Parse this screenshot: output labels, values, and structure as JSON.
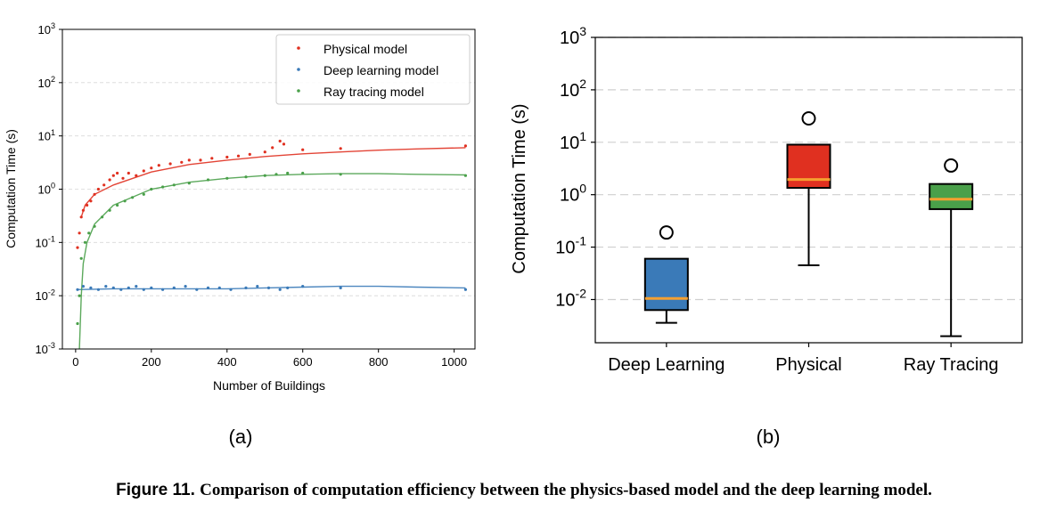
{
  "caption": {
    "label": "Figure 11.",
    "text": "Comparison of computation efficiency between the physics-based model and the deep learning model."
  },
  "chart_data": [
    {
      "type": "scatter",
      "panel_label": "(a)",
      "xlabel": "Number of Buildings",
      "ylabel": "Computation Time (s)",
      "xlim": [
        -35,
        1055
      ],
      "ylim": [
        0.001,
        1000
      ],
      "yscale": "log",
      "x_ticks": [
        0,
        200,
        400,
        600,
        800,
        1000
      ],
      "y_ticks": [
        0.001,
        0.01,
        0.1,
        1,
        10,
        100,
        1000
      ],
      "grid": "horizontal dashed",
      "legend_position": "top-right",
      "series": [
        {
          "name": "Physical model",
          "color": "#e03020",
          "x": [
            5,
            10,
            15,
            20,
            30,
            40,
            50,
            60,
            75,
            90,
            100,
            110,
            125,
            140,
            160,
            180,
            200,
            220,
            250,
            280,
            300,
            330,
            360,
            400,
            430,
            460,
            500,
            520,
            540,
            550,
            600,
            700,
            1030
          ],
          "y": [
            0.08,
            0.15,
            0.3,
            0.4,
            0.5,
            0.6,
            0.8,
            1.0,
            1.2,
            1.5,
            1.8,
            2.0,
            1.6,
            2.0,
            1.8,
            2.2,
            2.5,
            2.8,
            3.0,
            3.2,
            3.5,
            3.5,
            3.8,
            4.0,
            4.2,
            4.5,
            5.0,
            6.0,
            8.0,
            7.0,
            5.5,
            5.8,
            6.5
          ]
        },
        {
          "name": "Deep learning model",
          "color": "#3a7ab8",
          "x": [
            5,
            20,
            40,
            60,
            80,
            100,
            120,
            140,
            160,
            180,
            200,
            230,
            260,
            290,
            320,
            350,
            380,
            410,
            450,
            480,
            510,
            540,
            560,
            600,
            700,
            1030
          ],
          "y": [
            0.013,
            0.015,
            0.014,
            0.013,
            0.015,
            0.014,
            0.013,
            0.014,
            0.015,
            0.013,
            0.014,
            0.013,
            0.014,
            0.015,
            0.013,
            0.014,
            0.014,
            0.013,
            0.014,
            0.015,
            0.014,
            0.013,
            0.014,
            0.015,
            0.014,
            0.013
          ]
        },
        {
          "name": "Ray tracing model",
          "color": "#4aa04a",
          "x": [
            5,
            10,
            15,
            25,
            35,
            50,
            70,
            90,
            110,
            130,
            150,
            180,
            200,
            230,
            260,
            300,
            350,
            400,
            450,
            500,
            530,
            560,
            600,
            700,
            1030
          ],
          "y": [
            0.003,
            0.01,
            0.05,
            0.1,
            0.15,
            0.2,
            0.3,
            0.4,
            0.5,
            0.6,
            0.7,
            0.8,
            1.0,
            1.1,
            1.2,
            1.3,
            1.5,
            1.6,
            1.7,
            1.8,
            1.9,
            2.0,
            2.0,
            1.9,
            1.8
          ]
        }
      ],
      "fits": [
        {
          "series": "Physical model",
          "x": [
            15,
            25,
            50,
            100,
            200,
            300,
            400,
            500,
            600,
            700,
            800,
            900,
            1030
          ],
          "y": [
            0.3,
            0.5,
            0.8,
            1.2,
            2.1,
            2.9,
            3.5,
            4.1,
            4.6,
            5.0,
            5.4,
            5.7,
            6.0
          ]
        },
        {
          "series": "Deep learning model",
          "x": [
            5,
            100,
            200,
            300,
            400,
            500,
            600,
            700,
            800,
            900,
            1030
          ],
          "y": [
            0.013,
            0.0135,
            0.0135,
            0.0135,
            0.0135,
            0.014,
            0.0145,
            0.015,
            0.015,
            0.0145,
            0.014
          ]
        },
        {
          "series": "Ray tracing model",
          "x": [
            10,
            15,
            20,
            30,
            50,
            100,
            200,
            300,
            400,
            500,
            600,
            700,
            800,
            900,
            1030
          ],
          "y": [
            0.001,
            0.01,
            0.04,
            0.1,
            0.22,
            0.5,
            1.0,
            1.35,
            1.6,
            1.8,
            1.9,
            1.95,
            1.95,
            1.9,
            1.85
          ]
        }
      ]
    },
    {
      "type": "box",
      "panel_label": "(b)",
      "ylabel": "Computation Time (s)",
      "yscale": "log",
      "ylim": [
        0.0015,
        1000
      ],
      "y_ticks": [
        0.01,
        0.1,
        1,
        10,
        100,
        1000
      ],
      "grid": "horizontal dashed",
      "median_color": "#f5a030",
      "categories": [
        "Deep Learning",
        "Physical",
        "Ray Tracing"
      ],
      "boxes": [
        {
          "name": "Deep Learning",
          "color": "#3a7ab8",
          "whisker_low": 0.0036,
          "q1": 0.0063,
          "median": 0.0105,
          "q3": 0.06,
          "whisker_high": 0.06,
          "outliers": [
            0.19
          ]
        },
        {
          "name": "Physical",
          "color": "#e03020",
          "whisker_low": 0.045,
          "q1": 1.35,
          "median": 1.95,
          "q3": 9.0,
          "whisker_high": 9.0,
          "outliers": [
            28.5
          ]
        },
        {
          "name": "Ray Tracing",
          "color": "#4aa04a",
          "whisker_low": 0.002,
          "q1": 0.53,
          "median": 0.82,
          "q3": 1.6,
          "whisker_high": 1.6,
          "outliers": [
            3.6
          ]
        }
      ]
    }
  ]
}
